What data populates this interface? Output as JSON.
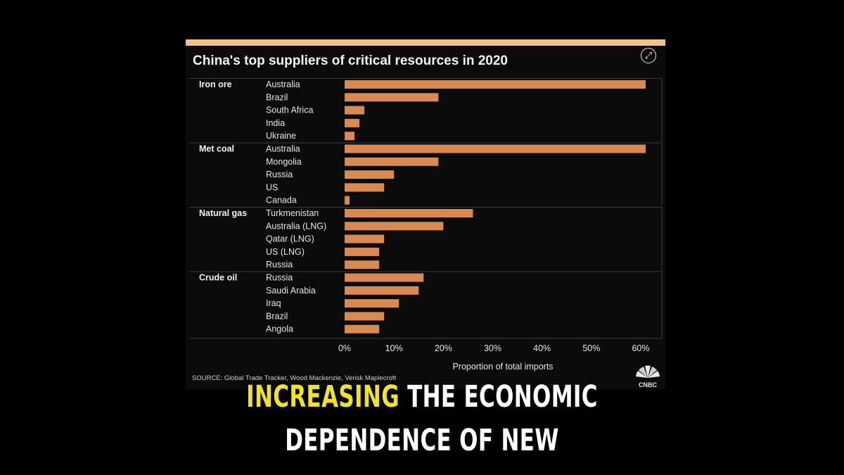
{
  "chart_data": {
    "type": "bar",
    "orientation": "horizontal",
    "title": "China's top suppliers of critical resources in 2020",
    "xlabel": "Proportion of total imports",
    "xlim": [
      0,
      62
    ],
    "x_ticks": [
      "0%",
      "10%",
      "20%",
      "30%",
      "40%",
      "50%",
      "60%"
    ],
    "x_tick_values": [
      0,
      10,
      20,
      30,
      40,
      50,
      60
    ],
    "grid": false,
    "bar_color": "#d88a52",
    "groups": [
      {
        "name": "Iron ore",
        "categories": [
          "Australia",
          "Brazil",
          "South Africa",
          "India",
          "Ukraine"
        ],
        "values": [
          61,
          19,
          4,
          3,
          2
        ]
      },
      {
        "name": "Met coal",
        "categories": [
          "Australia",
          "Mongolia",
          "Russia",
          "US",
          "Canada"
        ],
        "values": [
          61,
          19,
          10,
          8,
          1
        ]
      },
      {
        "name": "Natural gas",
        "categories": [
          "Turkmenistan",
          "Australia (LNG)",
          "Qatar (LNG)",
          "US (LNG)",
          "Russia"
        ],
        "values": [
          26,
          20,
          8,
          7,
          7
        ]
      },
      {
        "name": "Crude oil",
        "categories": [
          "Russia",
          "Saudi Arabia",
          "Iraq",
          "Brazil",
          "Angola"
        ],
        "values": [
          16,
          15,
          11,
          8,
          7
        ]
      }
    ],
    "source": "SOURCE: Global Trade Tracker, Wood Mackenzie, Verisk Maplecroft"
  },
  "brand": {
    "logo_text": "CNBC"
  },
  "caption": {
    "highlight": "INCREASING",
    "line1_rest": " THE ECONOMIC",
    "line2": "DEPENDENCE OF NEW"
  },
  "colors": {
    "highlight": "#f0e12c",
    "top_bar": "#f1c28f"
  },
  "icons": {
    "expand": "expand-arrows-icon"
  }
}
